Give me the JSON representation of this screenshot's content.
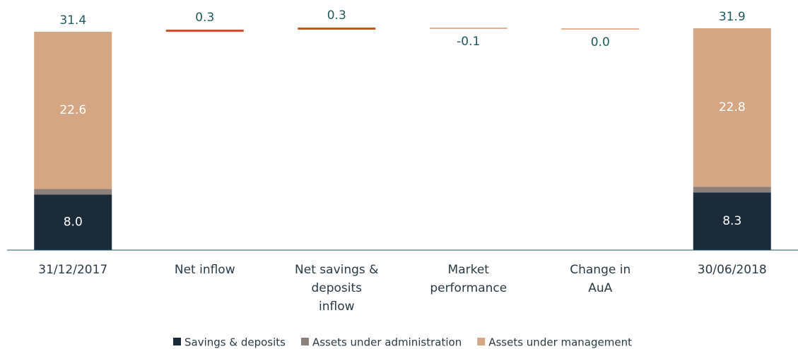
{
  "chart_data": {
    "type": "waterfall",
    "categories": [
      [
        "31/12/2017"
      ],
      [
        "Net inflow"
      ],
      [
        "Net savings &",
        "deposits",
        "inflow"
      ],
      [
        "Market",
        "performance"
      ],
      [
        "Change in",
        "AuA"
      ],
      [
        "30/06/2018"
      ]
    ],
    "series": [
      {
        "name": "Savings & deposits",
        "color": "#1c2b3a",
        "label_color": "#ffffff",
        "values": [
          8.0,
          null,
          null,
          null,
          null,
          8.3
        ],
        "value_labels": [
          "8.0",
          null,
          null,
          null,
          null,
          "8.3"
        ]
      },
      {
        "name": "Assets under administration",
        "color": "#8c807b",
        "label_color": "#f3e6da",
        "values": [
          0.8,
          null,
          null,
          null,
          null,
          0.8
        ]
      },
      {
        "name": "Assets under management",
        "color": "#d4a684",
        "label_color": "#ffffff",
        "values": [
          22.6,
          null,
          null,
          null,
          null,
          22.8
        ]
      }
    ],
    "totals": [
      31.4,
      null,
      null,
      null,
      null,
      31.9
    ],
    "changes": {
      "values": [
        null,
        0.3,
        0.3,
        -0.1,
        0.0,
        null
      ],
      "value_labels": [
        null,
        "0.3",
        "0.3",
        "-0.1",
        "0.0",
        null
      ],
      "colors": [
        null,
        "#c0551f",
        "#c0551f",
        "#dfb394",
        "#dfb394",
        null
      ]
    },
    "ylim": [
      0,
      32
    ]
  }
}
